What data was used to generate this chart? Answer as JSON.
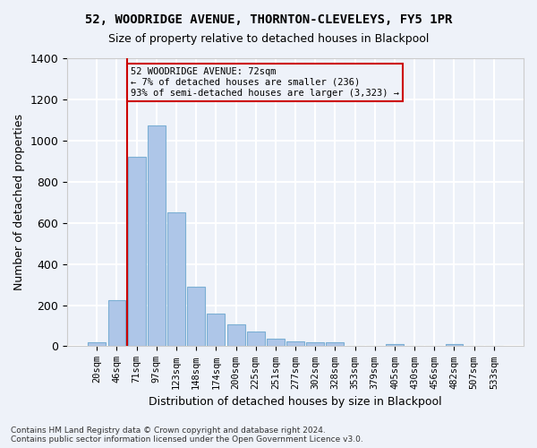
{
  "title1": "52, WOODRIDGE AVENUE, THORNTON-CLEVELEYS, FY5 1PR",
  "title2": "Size of property relative to detached houses in Blackpool",
  "xlabel": "Distribution of detached houses by size in Blackpool",
  "ylabel": "Number of detached properties",
  "bar_values": [
    20,
    225,
    920,
    1075,
    650,
    290,
    160,
    105,
    70,
    35,
    25,
    20,
    20,
    0,
    0,
    10,
    0,
    0,
    10,
    0,
    0
  ],
  "bar_labels": [
    "20sqm",
    "46sqm",
    "71sqm",
    "97sqm",
    "123sqm",
    "148sqm",
    "174sqm",
    "200sqm",
    "225sqm",
    "251sqm",
    "277sqm",
    "302sqm",
    "328sqm",
    "353sqm",
    "379sqm",
    "405sqm",
    "430sqm",
    "456sqm",
    "482sqm",
    "507sqm",
    "533sqm"
  ],
  "bar_color": "#aec6e8",
  "bar_edge_color": "#7bafd4",
  "annotation_line1": "52 WOODRIDGE AVENUE: 72sqm",
  "annotation_line2": "← 7% of detached houses are smaller (236)",
  "annotation_line3": "93% of semi-detached houses are larger (3,323) →",
  "vline_x": 1.5,
  "vline_color": "#cc0000",
  "box_edge_color": "#cc0000",
  "background_color": "#eef2f9",
  "grid_color": "#ffffff",
  "footer_text": "Contains HM Land Registry data © Crown copyright and database right 2024.\nContains public sector information licensed under the Open Government Licence v3.0.",
  "ylim": [
    0,
    1400
  ],
  "figsize": [
    6.0,
    5.0
  ],
  "dpi": 100
}
